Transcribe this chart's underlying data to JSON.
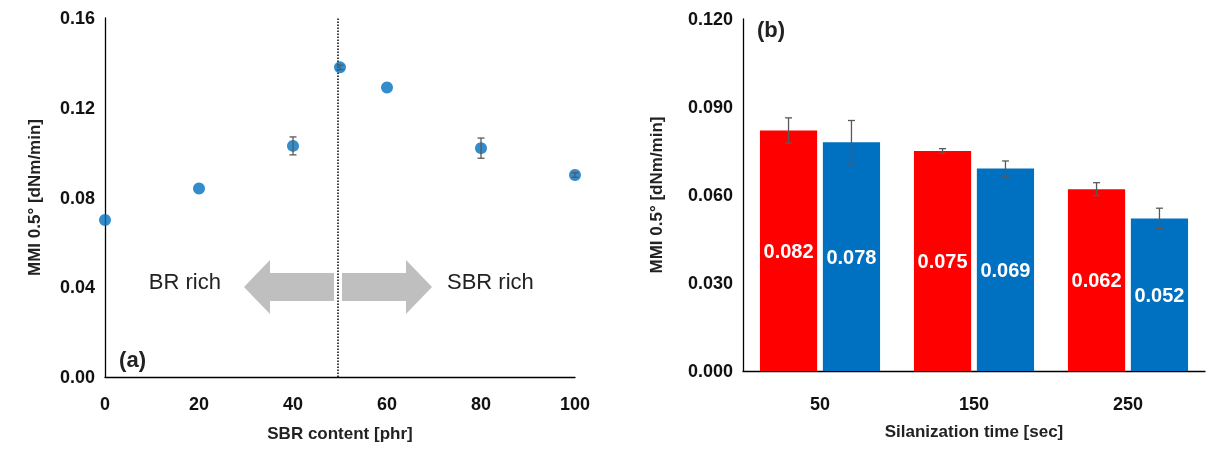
{
  "chart_data": [
    {
      "type": "scatter",
      "xlabel": "SBR content [phr]",
      "ylabel": "MMI 0.5° [dNm/min]",
      "x": [
        0,
        20,
        40,
        50,
        60,
        80,
        100
      ],
      "series": [
        {
          "color": "#0070c0",
          "values": [
            0.07,
            0.084,
            0.103,
            0.138,
            0.129,
            0.102,
            0.09
          ],
          "errors": [
            null,
            null,
            0.004,
            0.001,
            null,
            0.0045,
            0.001
          ]
        }
      ],
      "xlim": [
        0,
        100
      ],
      "xticks": [
        0,
        20,
        40,
        60,
        80,
        100
      ],
      "ylim": [
        0,
        0.16
      ],
      "yticks": [
        {
          "value": 0,
          "label": "0.00"
        },
        0.04,
        0.08,
        0.12,
        0.16
      ],
      "ref_lines": [
        {
          "axis": "x",
          "value": 49.5,
          "color": "#000000",
          "line_style": "dotted"
        }
      ],
      "annotations": [
        "BR rich",
        "SBR rich",
        "(a)"
      ],
      "marker": "circle"
    },
    {
      "type": "bar",
      "xlabel": "Silanization time [sec]",
      "ylabel": "MMI 0.5° [dNm/min]",
      "categories": [
        "50",
        "150",
        "250"
      ],
      "series": [
        {
          "color": "#ff0000",
          "values": [
            0.082,
            0.075,
            0.062
          ],
          "errors": [
            0.0043,
            0.0008,
            0.0022
          ]
        },
        {
          "color": "#0070c0",
          "values": [
            0.078,
            0.069,
            0.052
          ],
          "errors": [
            0.0074,
            0.0026,
            0.0035
          ]
        }
      ],
      "ylim": [
        0,
        0.12
      ],
      "yticks": [
        {
          "value": 0,
          "label": "0.000"
        },
        {
          "value": 0.03,
          "label": "0.030"
        },
        {
          "value": 0.06,
          "label": "0.060"
        },
        {
          "value": 0.09,
          "label": "0.090"
        },
        {
          "value": 0.12,
          "label": "0.120"
        }
      ],
      "data_labels": true,
      "annotations": [
        "(b)"
      ]
    }
  ]
}
